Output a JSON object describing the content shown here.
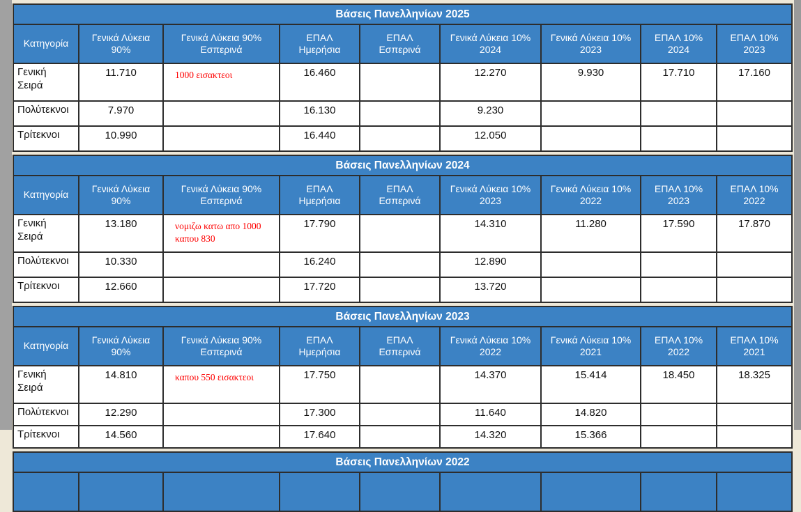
{
  "window": {
    "background_color": "#eee8d8",
    "left_edge_color": "#a1a1a1",
    "scrollbar_color": "#9a9a9a",
    "header_blue": "#3c82c4",
    "note_color": "#fe0000"
  },
  "tables": [
    {
      "title": "Βάσεις Πανελληνίων 2025",
      "headers": [
        "Κατηγορία",
        "Γενικά Λύκεια 90%",
        "Γενικά Λύκεια 90% Εσπερινά",
        "ΕΠΑΛ Ημερήσια",
        "ΕΠΑΛ Εσπερινά",
        "Γενικά Λύκεια 10% 2024",
        "Γενικά Λύκεια 10% 2023",
        "ΕΠΑΛ 10% 2024",
        "ΕΠΑΛ 10% 2023"
      ],
      "rows": [
        {
          "category": "Γενική Σειρά",
          "values": [
            "11.710",
            "",
            "16.460",
            "",
            "12.270",
            "9.930",
            "17.710",
            "17.160"
          ],
          "note": {
            "value_index": 1,
            "text": "1000 εισακτεοι"
          }
        },
        {
          "category": "Πολύτεκνοι",
          "values": [
            "7.970",
            "",
            "16.130",
            "",
            "9.230",
            "",
            "",
            ""
          ]
        },
        {
          "category": "Τρίτεκνοι",
          "values": [
            "10.990",
            "",
            "16.440",
            "",
            "12.050",
            "",
            "",
            ""
          ]
        }
      ]
    },
    {
      "title": "Βάσεις Πανελληνίων 2024",
      "headers": [
        "Κατηγορία",
        "Γενικά Λύκεια 90%",
        "Γενικά Λύκεια 90% Εσπερινά",
        "ΕΠΑΛ Ημερήσια",
        "ΕΠΑΛ Εσπερινά",
        "Γενικά Λύκεια 10% 2023",
        "Γενικά Λύκεια 10% 2022",
        "ΕΠΑΛ 10% 2023",
        "ΕΠΑΛ 10% 2022"
      ],
      "rows": [
        {
          "category": "Γενική Σειρά",
          "values": [
            "13.180",
            "",
            "17.790",
            "",
            "14.310",
            "11.280",
            "17.590",
            "17.870"
          ],
          "note": {
            "value_index": 1,
            "text": "νομιζω κατω απο 1000 καπου 830"
          }
        },
        {
          "category": "Πολύτεκνοι",
          "values": [
            "10.330",
            "",
            "16.240",
            "",
            "12.890",
            "",
            "",
            ""
          ]
        },
        {
          "category": "Τρίτεκνοι",
          "values": [
            "12.660",
            "",
            "17.720",
            "",
            "13.720",
            "",
            "",
            ""
          ]
        }
      ]
    },
    {
      "title": "Βάσεις Πανελληνίων 2023",
      "headers": [
        "Κατηγορία",
        "Γενικά Λύκεια 90%",
        "Γενικά Λύκεια 90% Εσπερινά",
        "ΕΠΑΛ Ημερήσια",
        "ΕΠΑΛ Εσπερινά",
        "Γενικά Λύκεια 10% 2022",
        "Γενικά Λύκεια 10% 2021",
        "ΕΠΑΛ 10% 2022",
        "ΕΠΑΛ 10% 2021"
      ],
      "rows": [
        {
          "category": "Γενική Σειρά",
          "values": [
            "14.810",
            "",
            "17.750",
            "",
            "14.370",
            "15.414",
            "18.450",
            "18.325"
          ],
          "note": {
            "value_index": 1,
            "text": "καπου 550 εισακτεοι"
          }
        },
        {
          "category": "Πολύτεκνοι",
          "values": [
            "12.290",
            "",
            "17.300",
            "",
            "11.640",
            "14.820",
            "",
            ""
          ]
        },
        {
          "category": "Τρίτεκνοι",
          "values": [
            "14.560",
            "",
            "17.640",
            "",
            "14.320",
            "15.366",
            "",
            ""
          ]
        }
      ]
    },
    {
      "title": "Βάσεις Πανελληνίων 2022",
      "stub": true
    }
  ]
}
